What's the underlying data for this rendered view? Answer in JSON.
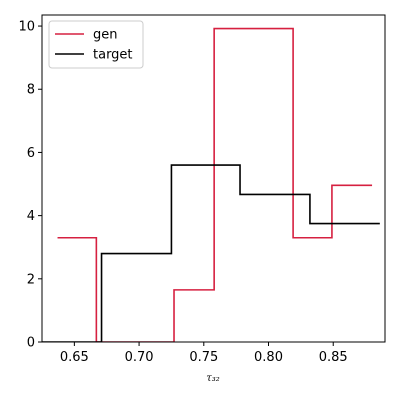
{
  "chart_data": {
    "type": "line",
    "drawstyle": "steps-post",
    "xlabel": "τ₃₂",
    "ylabel": "",
    "title": "",
    "xlim": [
      0.625,
      0.89
    ],
    "ylim": [
      0,
      10.35
    ],
    "xticks": [
      0.65,
      0.7,
      0.75,
      0.8,
      0.85
    ],
    "xtick_labels": [
      "0.65",
      "0.70",
      "0.75",
      "0.80",
      "0.85"
    ],
    "yticks": [
      0,
      2,
      4,
      6,
      8,
      10
    ],
    "ytick_labels": [
      "0",
      "2",
      "4",
      "6",
      "8",
      "10"
    ],
    "grid": false,
    "legend_position": "upper-left",
    "series": [
      {
        "name": "gen",
        "color": "#d62040",
        "edges": [
          0.637,
          0.667,
          0.697,
          0.727,
          0.758,
          0.819,
          0.849,
          0.88
        ],
        "values": [
          3.3,
          0.0,
          0.0,
          1.65,
          9.92,
          3.3,
          4.96
        ]
      },
      {
        "name": "target",
        "color": "#000000",
        "edges": [
          0.617,
          0.671,
          0.725,
          0.778,
          0.832,
          0.886
        ],
        "values": [
          0.0,
          2.8,
          5.6,
          4.67,
          3.75
        ]
      }
    ]
  }
}
